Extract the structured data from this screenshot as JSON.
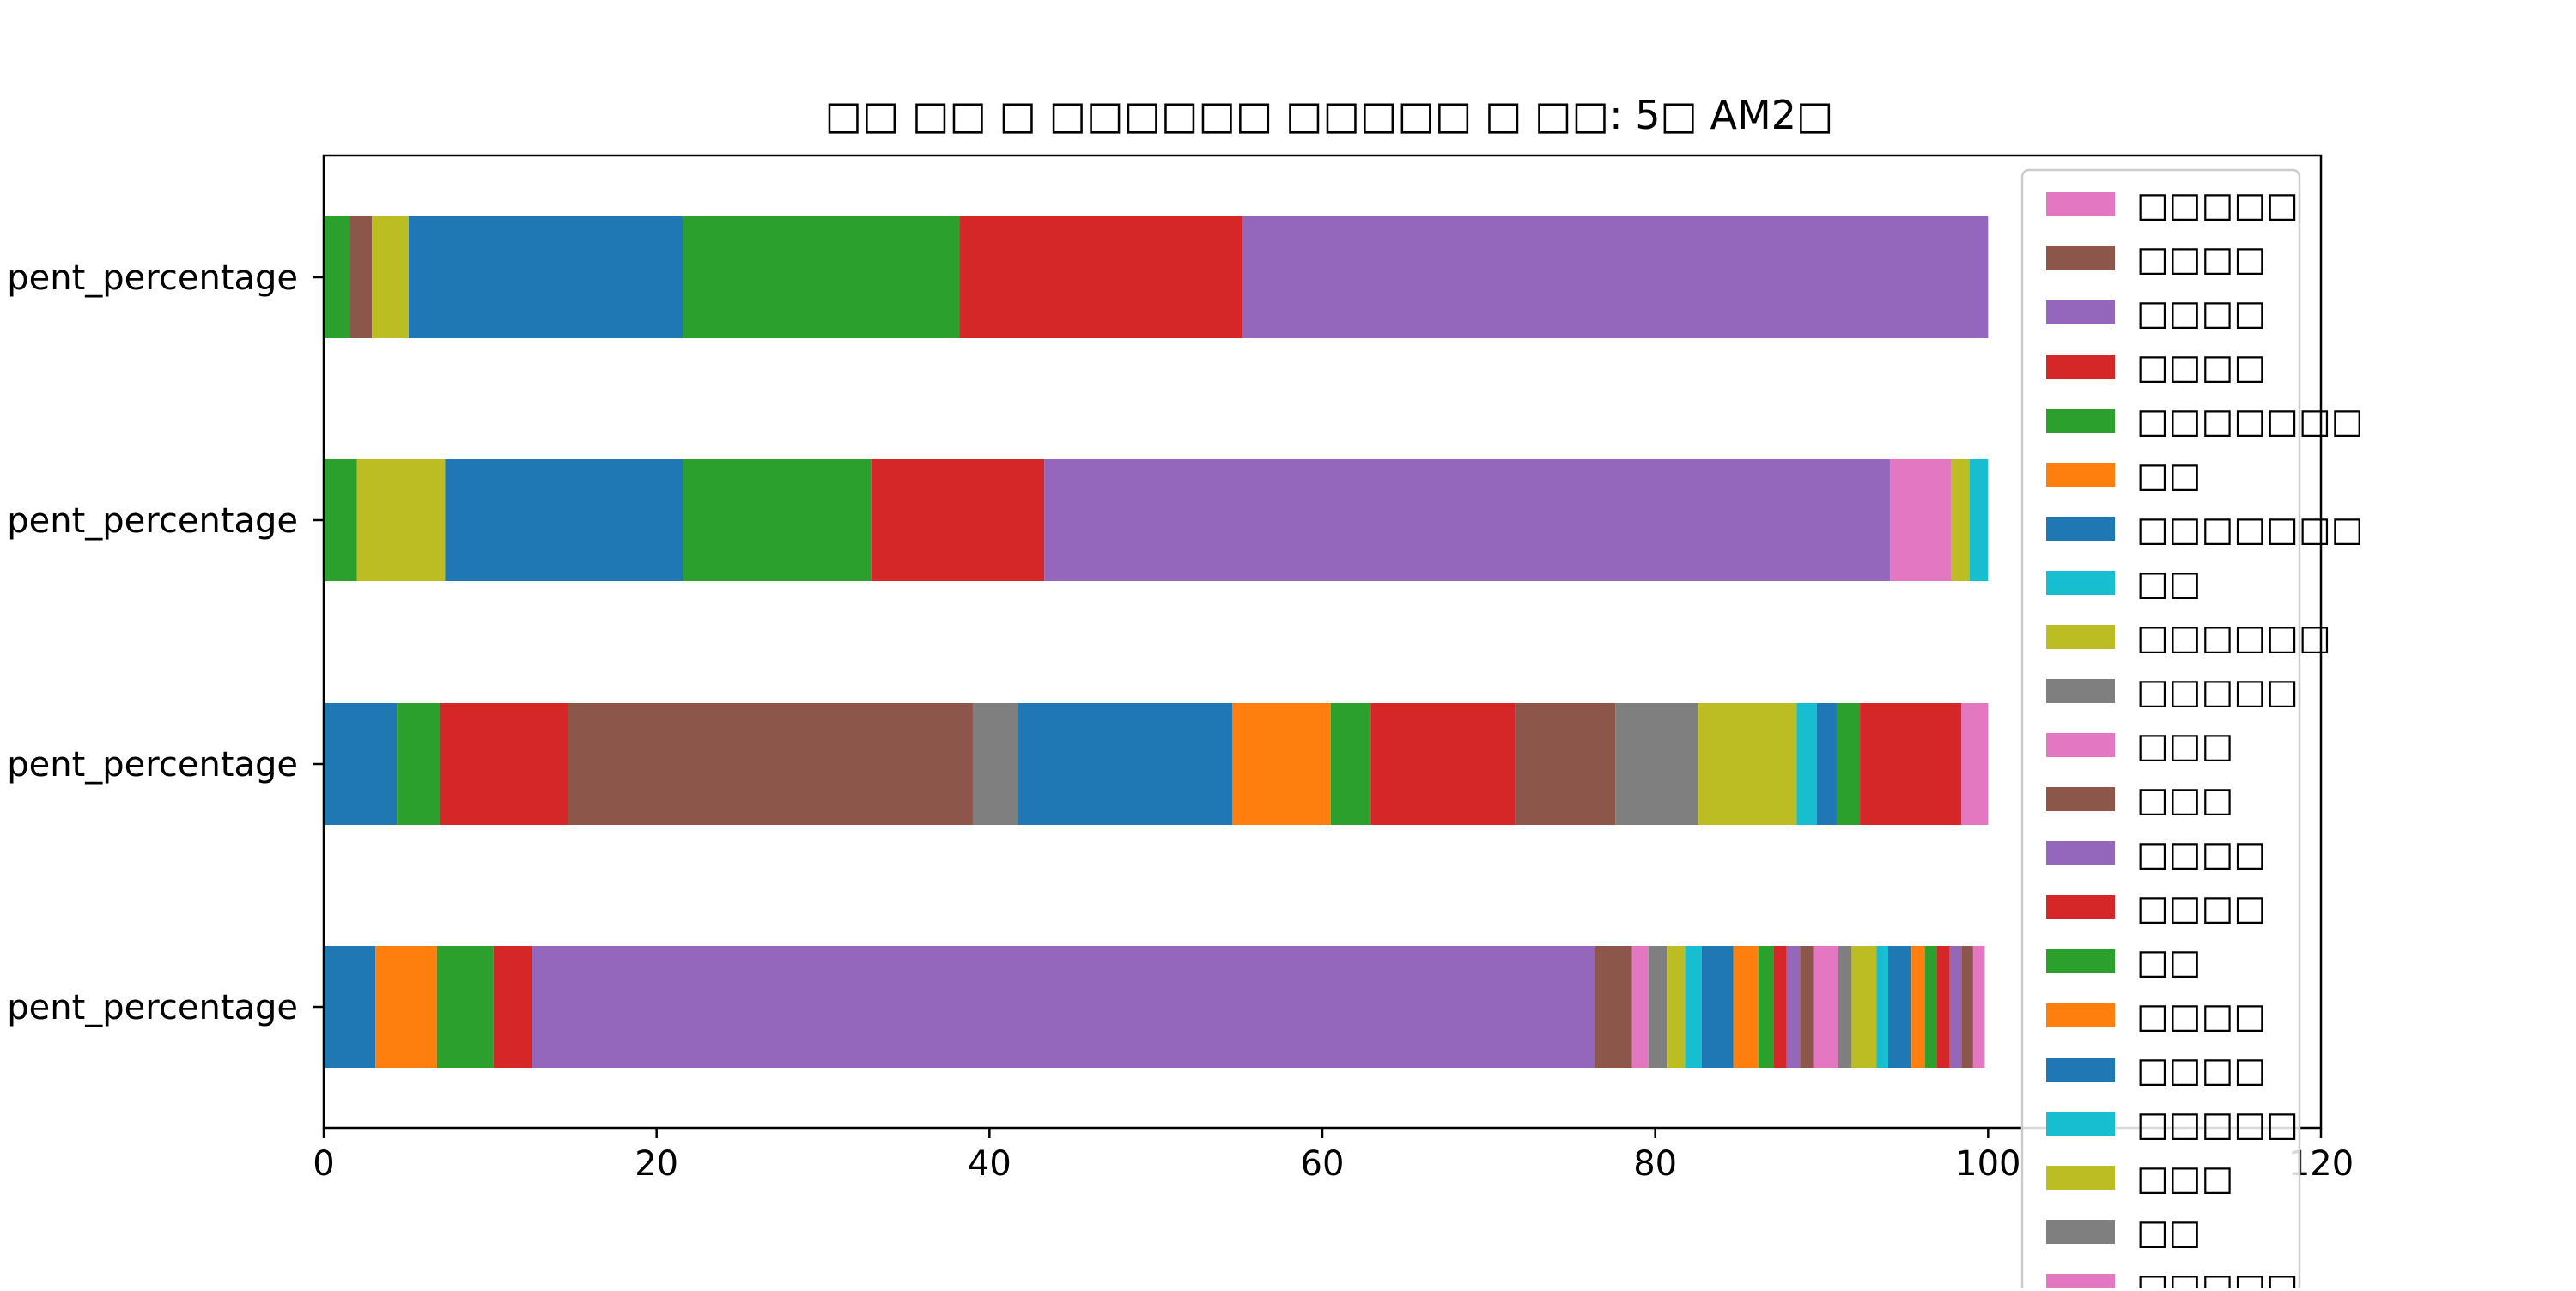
{
  "chart_data": {
    "type": "bar",
    "orientation": "horizontal",
    "stacked": true,
    "title": "□□ □□ □ □□□□□□ □□□□□ □ □□: 5□ AM2□",
    "xlabel": "",
    "ylabel": "",
    "xlim": [
      0,
      120
    ],
    "x_ticks": [
      "0",
      "20",
      "40",
      "60",
      "80",
      "100",
      "120"
    ],
    "grid": false,
    "legend_position": "upper right",
    "categories": [
      "pent_percentage",
      "pent_percentage",
      "pent_percentage",
      "pent_percentage"
    ],
    "category_order_note_text": "",
    "bars": [
      {
        "label": "pent_percentage",
        "segments": [
          {
            "value": 3.1,
            "color": "#1f77b4"
          },
          {
            "value": 3.7,
            "color": "#ff7f0e"
          },
          {
            "value": 3.4,
            "color": "#2ca02c"
          },
          {
            "value": 2.3,
            "color": "#d62728"
          },
          {
            "value": 63.9,
            "color": "#9467bd"
          },
          {
            "value": 2.2,
            "color": "#8c564b"
          },
          {
            "value": 1.0,
            "color": "#e377c2"
          },
          {
            "value": 1.1,
            "color": "#7f7f7f"
          },
          {
            "value": 1.1,
            "color": "#bcbd22"
          },
          {
            "value": 1.0,
            "color": "#17becf"
          },
          {
            "value": 1.9,
            "color": "#1f77b4"
          },
          {
            "value": 1.5,
            "color": "#ff7f0e"
          },
          {
            "value": 0.9,
            "color": "#2ca02c"
          },
          {
            "value": 0.8,
            "color": "#d62728"
          },
          {
            "value": 0.8,
            "color": "#9467bd"
          },
          {
            "value": 0.8,
            "color": "#8c564b"
          },
          {
            "value": 1.5,
            "color": "#e377c2"
          },
          {
            "value": 0.8,
            "color": "#7f7f7f"
          },
          {
            "value": 1.5,
            "color": "#bcbd22"
          },
          {
            "value": 0.7,
            "color": "#17becf"
          },
          {
            "value": 1.4,
            "color": "#1f77b4"
          },
          {
            "value": 0.8,
            "color": "#ff7f0e"
          },
          {
            "value": 0.7,
            "color": "#2ca02c"
          },
          {
            "value": 0.8,
            "color": "#d62728"
          },
          {
            "value": 0.7,
            "color": "#9467bd"
          },
          {
            "value": 0.7,
            "color": "#8c564b"
          },
          {
            "value": 0.7,
            "color": "#e377c2"
          }
        ]
      },
      {
        "label": "pent_percentage",
        "segments": [
          {
            "value": 4.4,
            "color": "#1f77b4"
          },
          {
            "value": 2.6,
            "color": "#2ca02c"
          },
          {
            "value": 7.7,
            "color": "#d62728"
          },
          {
            "value": 24.3,
            "color": "#8c564b"
          },
          {
            "value": 2.7,
            "color": "#7f7f7f"
          },
          {
            "value": 12.9,
            "color": "#1f77b4"
          },
          {
            "value": 5.9,
            "color": "#ff7f0e"
          },
          {
            "value": 2.4,
            "color": "#2ca02c"
          },
          {
            "value": 8.7,
            "color": "#d62728"
          },
          {
            "value": 6.0,
            "color": "#8c564b"
          },
          {
            "value": 5.0,
            "color": "#7f7f7f"
          },
          {
            "value": 5.9,
            "color": "#bcbd22"
          },
          {
            "value": 1.2,
            "color": "#17becf"
          },
          {
            "value": 1.2,
            "color": "#1f77b4"
          },
          {
            "value": 1.4,
            "color": "#2ca02c"
          },
          {
            "value": 6.1,
            "color": "#d62728"
          },
          {
            "value": 1.6,
            "color": "#e377c2"
          }
        ]
      },
      {
        "label": "pent_percentage",
        "segments": [
          {
            "value": 2.0,
            "color": "#2ca02c"
          },
          {
            "value": 5.3,
            "color": "#bcbd22"
          },
          {
            "value": 14.3,
            "color": "#1f77b4"
          },
          {
            "value": 11.3,
            "color": "#2ca02c"
          },
          {
            "value": 10.4,
            "color": "#d62728"
          },
          {
            "value": 50.8,
            "color": "#9467bd"
          },
          {
            "value": 3.7,
            "color": "#e377c2"
          },
          {
            "value": 1.1,
            "color": "#bcbd22"
          },
          {
            "value": 1.1,
            "color": "#17becf"
          }
        ]
      },
      {
        "label": "pent_percentage",
        "segments": [
          {
            "value": 1.6,
            "color": "#2ca02c"
          },
          {
            "value": 1.3,
            "color": "#8c564b"
          },
          {
            "value": 2.2,
            "color": "#bcbd22"
          },
          {
            "value": 16.5,
            "color": "#1f77b4"
          },
          {
            "value": 16.6,
            "color": "#2ca02c"
          },
          {
            "value": 17.0,
            "color": "#d62728"
          },
          {
            "value": 44.8,
            "color": "#9467bd"
          }
        ]
      }
    ],
    "legend": [
      {
        "label": "□□□□□",
        "color": "#e377c2"
      },
      {
        "label": "□□□□",
        "color": "#8c564b"
      },
      {
        "label": "□□□□",
        "color": "#9467bd"
      },
      {
        "label": "□□□□",
        "color": "#d62728"
      },
      {
        "label": "□□□□□□□",
        "color": "#2ca02c"
      },
      {
        "label": "□□",
        "color": "#ff7f0e"
      },
      {
        "label": "□□□□□□□",
        "color": "#1f77b4"
      },
      {
        "label": "□□",
        "color": "#17becf"
      },
      {
        "label": "□□□□□□",
        "color": "#bcbd22"
      },
      {
        "label": "□□□□□",
        "color": "#7f7f7f"
      },
      {
        "label": "□□□",
        "color": "#e377c2"
      },
      {
        "label": "□□□",
        "color": "#8c564b"
      },
      {
        "label": "□□□□",
        "color": "#9467bd"
      },
      {
        "label": "□□□□",
        "color": "#d62728"
      },
      {
        "label": "□□",
        "color": "#2ca02c"
      },
      {
        "label": "□□□□",
        "color": "#ff7f0e"
      },
      {
        "label": "□□□□",
        "color": "#1f77b4"
      },
      {
        "label": "□□□□□",
        "color": "#17becf"
      },
      {
        "label": "□□□",
        "color": "#bcbd22"
      },
      {
        "label": "□□",
        "color": "#7f7f7f"
      },
      {
        "label": "□□□□□",
        "color": "#e377c2"
      }
    ]
  }
}
